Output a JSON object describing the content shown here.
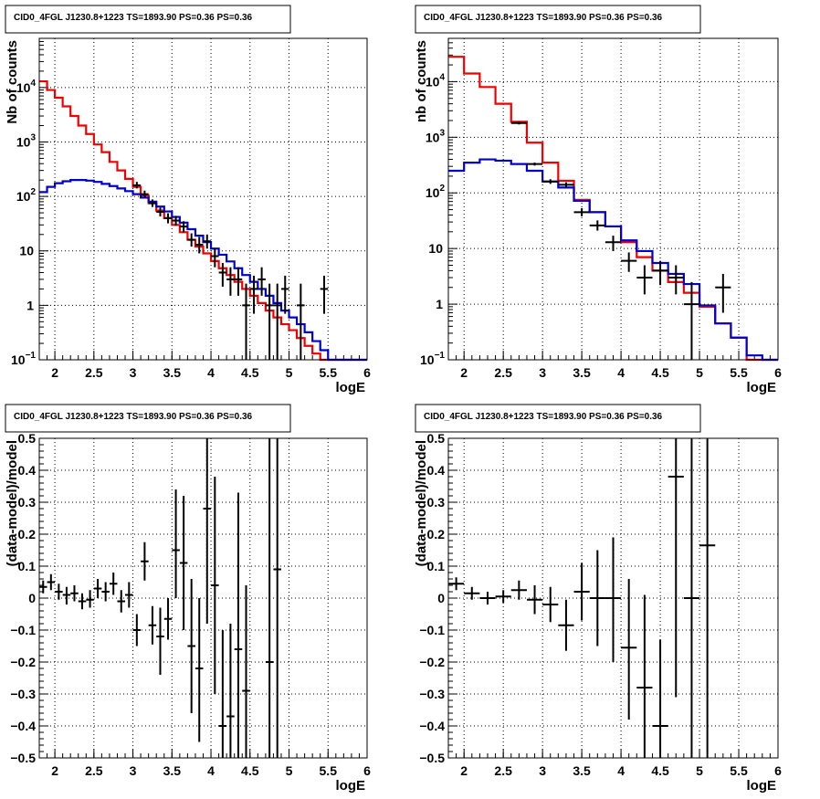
{
  "colors": {
    "data": "#000000",
    "total_model": "#ee0000",
    "source_model": "#0000cc"
  },
  "chart_data": [
    {
      "type": "line",
      "title": "CID0_4FGL J1230.8+1223 TS=1893.90 PS=0.36 PS=0.36",
      "xlabel": "logE",
      "ylabel": "Nb of counts",
      "yscale": "log",
      "xlim": [
        1.8,
        6.0
      ],
      "ylim": [
        0.1,
        80000
      ],
      "grid": true,
      "x_ticks": [
        "2",
        "2.5",
        "3",
        "3.5",
        "4",
        "4.5",
        "5",
        "5.5",
        "6"
      ],
      "y_ticks": [
        "10^-1",
        "1",
        "10",
        "10^2",
        "10^3",
        "10^4"
      ],
      "bin_edges": [
        1.8,
        1.9,
        2.0,
        2.1,
        2.2,
        2.3,
        2.4,
        2.5,
        2.6,
        2.7,
        2.8,
        2.9,
        3.0,
        3.1,
        3.2,
        3.3,
        3.4,
        3.5,
        3.6,
        3.7,
        3.8,
        3.9,
        4.0,
        4.1,
        4.2,
        4.3,
        4.4,
        4.5,
        4.6,
        4.7,
        4.8,
        4.9,
        5.0,
        5.1,
        5.2,
        5.3,
        5.4,
        5.5,
        5.6,
        5.7,
        5.8,
        5.9,
        6.0
      ],
      "series": [
        {
          "role": "total_model",
          "style": "step",
          "values": [
            13000,
            9000,
            6500,
            4500,
            3000,
            2000,
            1400,
            900,
            650,
            430,
            300,
            210,
            150,
            105,
            75,
            55,
            40,
            30,
            22,
            16,
            12,
            9,
            6.5,
            4.8,
            3.6,
            2.7,
            2.0,
            1.5,
            1.1,
            0.8,
            0.6,
            0.45,
            0.35,
            0.25,
            0.18,
            0.13,
            0.1,
            0.1,
            0.1,
            0.1,
            0.1,
            0.1
          ]
        },
        {
          "role": "source_model",
          "style": "step",
          "values": [
            120,
            150,
            175,
            190,
            200,
            200,
            195,
            185,
            170,
            155,
            140,
            125,
            110,
            95,
            80,
            65,
            53,
            42,
            33,
            25,
            19,
            14.5,
            11,
            8.5,
            6.4,
            4.8,
            3.6,
            2.7,
            2.0,
            1.5,
            1.1,
            0.8,
            0.6,
            0.45,
            0.32,
            0.22,
            0.15,
            0.1,
            0.1,
            0.1,
            0.1,
            0.1
          ]
        },
        {
          "role": "data",
          "style": "errorbar",
          "points": [
            {
              "x": 3.05,
              "y": 160,
              "ylo": 140,
              "yhi": 185
            },
            {
              "x": 3.15,
              "y": 110,
              "ylo": 95,
              "yhi": 128
            },
            {
              "x": 3.25,
              "y": 75,
              "ylo": 64,
              "yhi": 88
            },
            {
              "x": 3.35,
              "y": 52,
              "ylo": 43,
              "yhi": 62
            },
            {
              "x": 3.45,
              "y": 40,
              "ylo": 32,
              "yhi": 49
            },
            {
              "x": 3.55,
              "y": 36,
              "ylo": 29,
              "yhi": 44
            },
            {
              "x": 3.65,
              "y": 28,
              "ylo": 22,
              "yhi": 35
            },
            {
              "x": 3.75,
              "y": 16,
              "ylo": 12,
              "yhi": 21
            },
            {
              "x": 3.85,
              "y": 13,
              "ylo": 9,
              "yhi": 18
            },
            {
              "x": 3.95,
              "y": 15,
              "ylo": 11,
              "yhi": 20
            },
            {
              "x": 4.05,
              "y": 8,
              "ylo": 5,
              "yhi": 11
            },
            {
              "x": 4.15,
              "y": 4,
              "ylo": 2.2,
              "yhi": 6
            },
            {
              "x": 4.25,
              "y": 3,
              "ylo": 1.5,
              "yhi": 5
            },
            {
              "x": 4.35,
              "y": 3,
              "ylo": 1.5,
              "yhi": 5
            },
            {
              "x": 4.45,
              "y": 1,
              "ylo": 0.1,
              "yhi": 2.5
            },
            {
              "x": 4.55,
              "y": 2,
              "ylo": 0.7,
              "yhi": 3.5
            },
            {
              "x": 4.65,
              "y": 3,
              "ylo": 1.5,
              "yhi": 5
            },
            {
              "x": 4.75,
              "y": 1,
              "ylo": 0.1,
              "yhi": 2.5
            },
            {
              "x": 4.85,
              "y": 1,
              "ylo": 0.1,
              "yhi": 2.5
            },
            {
              "x": 4.95,
              "y": 2,
              "ylo": 0.7,
              "yhi": 3.5
            },
            {
              "x": 5.15,
              "y": 1,
              "ylo": 0.1,
              "yhi": 2.5
            },
            {
              "x": 5.45,
              "y": 2,
              "ylo": 0.7,
              "yhi": 3.5
            }
          ]
        }
      ]
    },
    {
      "type": "line",
      "title": "CID0_4FGL J1230.8+1223 TS=1893.90 PS=0.36 PS=0.36",
      "xlabel": "logE",
      "ylabel": "nb of counts",
      "yscale": "log",
      "xlim": [
        1.8,
        6.0
      ],
      "ylim": [
        0.1,
        60000
      ],
      "grid": true,
      "x_ticks": [
        "2",
        "2.5",
        "3",
        "3.5",
        "4",
        "4.5",
        "5",
        "5.5",
        "6"
      ],
      "y_ticks": [
        "10^-1",
        "1",
        "10",
        "10^2",
        "10^3",
        "10^4"
      ],
      "bin_edges": [
        1.8,
        2.0,
        2.2,
        2.4,
        2.6,
        2.8,
        3.0,
        3.2,
        3.4,
        3.6,
        3.8,
        4.0,
        4.2,
        4.4,
        4.6,
        4.8,
        5.0,
        5.2,
        5.4,
        5.6,
        5.8,
        6.0
      ],
      "series": [
        {
          "role": "total_model",
          "style": "step",
          "values": [
            28000,
            14000,
            8000,
            4000,
            1900,
            800,
            350,
            165,
            75,
            45,
            25,
            13,
            7,
            4,
            2.5,
            1.6,
            0.9,
            0.45,
            0.25,
            0.1,
            0.1
          ]
        },
        {
          "role": "source_model",
          "style": "step",
          "values": [
            250,
            350,
            400,
            380,
            330,
            250,
            160,
            125,
            72,
            45,
            25,
            14,
            9,
            5.5,
            3.5,
            2.3,
            0.95,
            0.45,
            0.25,
            0.12,
            0.1
          ]
        },
        {
          "role": "data",
          "style": "errorbar",
          "points": [
            {
              "x": 2.7,
              "y": 1800,
              "ylo": 1700,
              "yhi": 1900
            },
            {
              "x": 2.9,
              "y": 330,
              "ylo": 310,
              "yhi": 350
            },
            {
              "x": 3.1,
              "y": 160,
              "ylo": 145,
              "yhi": 176
            },
            {
              "x": 3.3,
              "y": 140,
              "ylo": 125,
              "yhi": 155
            },
            {
              "x": 3.5,
              "y": 45,
              "ylo": 38,
              "yhi": 53
            },
            {
              "x": 3.7,
              "y": 26,
              "ylo": 21,
              "yhi": 32
            },
            {
              "x": 3.9,
              "y": 13,
              "ylo": 9,
              "yhi": 17
            },
            {
              "x": 4.1,
              "y": 6,
              "ylo": 3.8,
              "yhi": 8.5
            },
            {
              "x": 4.3,
              "y": 3,
              "ylo": 1.5,
              "yhi": 5
            },
            {
              "x": 4.5,
              "y": 4,
              "ylo": 2.2,
              "yhi": 6
            },
            {
              "x": 4.7,
              "y": 3,
              "ylo": 1.5,
              "yhi": 5
            },
            {
              "x": 4.9,
              "y": 1,
              "ylo": 0.1,
              "yhi": 2.5
            },
            {
              "x": 5.3,
              "y": 2,
              "ylo": 0.7,
              "yhi": 3.5
            }
          ]
        }
      ]
    },
    {
      "type": "scatter",
      "title": "CID0_4FGL J1230.8+1223 TS=1893.90 PS=0.36 PS=0.36",
      "xlabel": "logE",
      "ylabel": "(data-model)/model",
      "yscale": "linear",
      "xlim": [
        1.8,
        6.0
      ],
      "ylim": [
        -0.5,
        0.5
      ],
      "grid": true,
      "x_ticks": [
        "2",
        "2.5",
        "3",
        "3.5",
        "4",
        "4.5",
        "5",
        "5.5",
        "6"
      ],
      "y_ticks": [
        "-0.5",
        "-0.4",
        "-0.3",
        "-0.2",
        "-0.1",
        "0",
        "0.1",
        "0.2",
        "0.3",
        "0.4",
        "0.5"
      ],
      "xerr": 0.05,
      "series": [
        {
          "role": "data",
          "style": "errorbar",
          "points": [
            {
              "x": 1.85,
              "y": 0.035,
              "ylo": 0.015,
              "yhi": 0.055
            },
            {
              "x": 1.95,
              "y": 0.05,
              "ylo": 0.025,
              "yhi": 0.075
            },
            {
              "x": 2.05,
              "y": 0.02,
              "ylo": -0.005,
              "yhi": 0.045
            },
            {
              "x": 2.15,
              "y": 0.01,
              "ylo": -0.02,
              "yhi": 0.035
            },
            {
              "x": 2.25,
              "y": 0.015,
              "ylo": -0.01,
              "yhi": 0.04
            },
            {
              "x": 2.35,
              "y": -0.01,
              "ylo": -0.035,
              "yhi": 0.015
            },
            {
              "x": 2.45,
              "y": -0.005,
              "ylo": -0.03,
              "yhi": 0.025
            },
            {
              "x": 2.55,
              "y": 0.03,
              "ylo": 0.0,
              "yhi": 0.06
            },
            {
              "x": 2.65,
              "y": 0.02,
              "ylo": -0.01,
              "yhi": 0.05
            },
            {
              "x": 2.75,
              "y": 0.045,
              "ylo": 0.01,
              "yhi": 0.08
            },
            {
              "x": 2.85,
              "y": -0.01,
              "ylo": -0.045,
              "yhi": 0.025
            },
            {
              "x": 2.95,
              "y": 0.01,
              "ylo": -0.03,
              "yhi": 0.05
            },
            {
              "x": 3.05,
              "y": -0.1,
              "ylo": -0.15,
              "yhi": -0.05
            },
            {
              "x": 3.15,
              "y": 0.115,
              "ylo": 0.055,
              "yhi": 0.175
            },
            {
              "x": 3.25,
              "y": -0.085,
              "ylo": -0.145,
              "yhi": -0.025
            },
            {
              "x": 3.35,
              "y": -0.12,
              "ylo": -0.24,
              "yhi": -0.03
            },
            {
              "x": 3.45,
              "y": -0.065,
              "ylo": -0.13,
              "yhi": 0.0
            },
            {
              "x": 3.55,
              "y": 0.15,
              "ylo": 0.0,
              "yhi": 0.34
            },
            {
              "x": 3.65,
              "y": 0.11,
              "ylo": -0.1,
              "yhi": 0.32
            },
            {
              "x": 3.75,
              "y": -0.15,
              "ylo": -0.36,
              "yhi": 0.06
            },
            {
              "x": 3.85,
              "y": -0.22,
              "ylo": -0.45,
              "yhi": 0.0
            },
            {
              "x": 3.95,
              "y": 0.28,
              "ylo": -0.08,
              "yhi": 0.5
            },
            {
              "x": 4.05,
              "y": 0.04,
              "ylo": -0.3,
              "yhi": 0.38
            },
            {
              "x": 4.15,
              "y": -0.4,
              "ylo": -0.5,
              "yhi": -0.1
            },
            {
              "x": 4.25,
              "y": -0.37,
              "ylo": -0.5,
              "yhi": -0.08
            },
            {
              "x": 4.35,
              "y": -0.16,
              "ylo": -0.5,
              "yhi": 0.33
            },
            {
              "x": 4.45,
              "y": -0.29,
              "ylo": -0.5,
              "yhi": 0.04
            },
            {
              "x": 4.75,
              "y": -0.2,
              "ylo": -0.5,
              "yhi": 0.5
            },
            {
              "x": 4.85,
              "y": 0.09,
              "ylo": -0.5,
              "yhi": 0.5
            }
          ]
        }
      ]
    },
    {
      "type": "scatter",
      "title": "CID0_4FGL J1230.8+1223 TS=1893.90 PS=0.36 PS=0.36",
      "xlabel": "logE",
      "ylabel": "(data-model)/model",
      "yscale": "linear",
      "xlim": [
        1.8,
        6.0
      ],
      "ylim": [
        -0.5,
        0.5
      ],
      "grid": true,
      "x_ticks": [
        "2",
        "2.5",
        "3",
        "3.5",
        "4",
        "4.5",
        "5",
        "5.5",
        "6"
      ],
      "y_ticks": [
        "-0.5",
        "-0.4",
        "-0.3",
        "-0.2",
        "-0.1",
        "0",
        "0.1",
        "0.2",
        "0.3",
        "0.4",
        "0.5"
      ],
      "xerr": 0.1,
      "series": [
        {
          "role": "data",
          "style": "errorbar",
          "points": [
            {
              "x": 1.9,
              "y": 0.045,
              "ylo": 0.025,
              "yhi": 0.065
            },
            {
              "x": 2.1,
              "y": 0.015,
              "ylo": -0.005,
              "yhi": 0.035
            },
            {
              "x": 2.3,
              "y": 0.0,
              "ylo": -0.02,
              "yhi": 0.02
            },
            {
              "x": 2.5,
              "y": 0.005,
              "ylo": -0.015,
              "yhi": 0.025
            },
            {
              "x": 2.7,
              "y": 0.025,
              "ylo": -0.005,
              "yhi": 0.055
            },
            {
              "x": 2.9,
              "y": -0.005,
              "ylo": -0.05,
              "yhi": 0.04
            },
            {
              "x": 3.1,
              "y": -0.02,
              "ylo": -0.075,
              "yhi": 0.035
            },
            {
              "x": 3.3,
              "y": -0.085,
              "ylo": -0.165,
              "yhi": -0.005
            },
            {
              "x": 3.5,
              "y": 0.02,
              "ylo": -0.07,
              "yhi": 0.11
            },
            {
              "x": 3.7,
              "y": 0.0,
              "ylo": -0.15,
              "yhi": 0.15
            },
            {
              "x": 3.9,
              "y": 0.0,
              "ylo": -0.2,
              "yhi": 0.19
            },
            {
              "x": 4.1,
              "y": -0.155,
              "ylo": -0.38,
              "yhi": 0.06
            },
            {
              "x": 4.3,
              "y": -0.28,
              "ylo": -0.5,
              "yhi": 0.01
            },
            {
              "x": 4.5,
              "y": -0.4,
              "ylo": -0.5,
              "yhi": -0.13
            },
            {
              "x": 4.7,
              "y": 0.38,
              "ylo": -0.31,
              "yhi": 0.5
            },
            {
              "x": 4.9,
              "y": 0.0,
              "ylo": -0.5,
              "yhi": 0.5
            },
            {
              "x": 5.1,
              "y": 0.165,
              "ylo": -0.5,
              "yhi": 0.5
            }
          ]
        }
      ]
    }
  ]
}
